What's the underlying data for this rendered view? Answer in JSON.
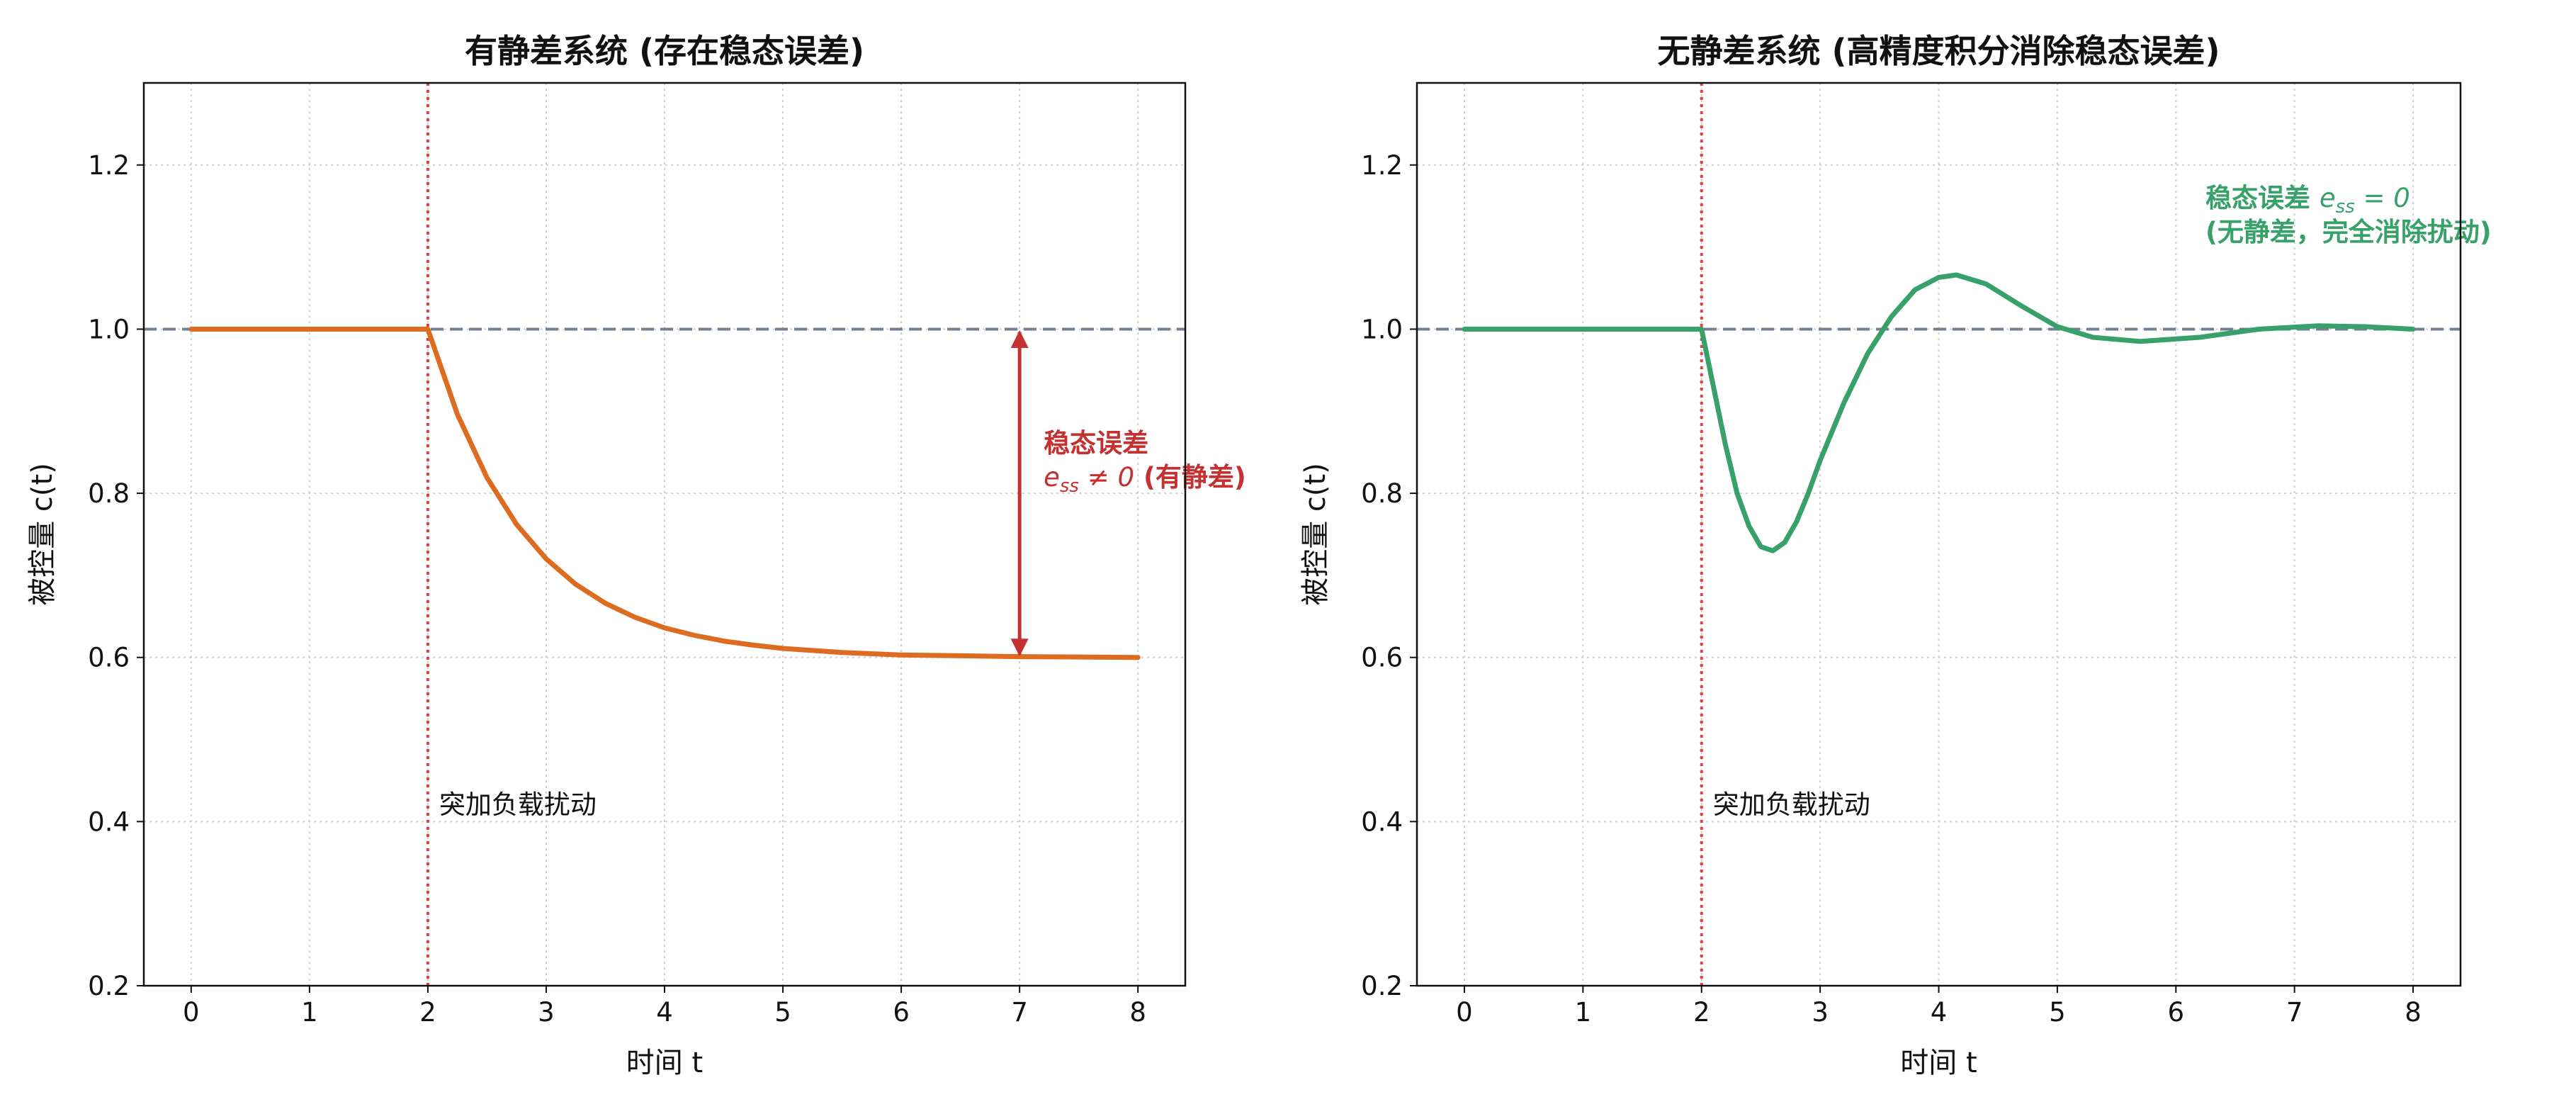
{
  "chart_data": [
    {
      "type": "line",
      "title": "有静差系统 (存在稳态误差)",
      "title_color": "#DD6B20",
      "xlabel": "时间 t",
      "ylabel": "被控量 c(t)",
      "x": [
        0,
        1,
        2,
        2.25,
        2.5,
        2.75,
        3,
        3.25,
        3.5,
        3.75,
        4,
        4.25,
        4.5,
        4.75,
        5,
        5.5,
        6,
        6.5,
        7,
        8
      ],
      "series": [
        {
          "name": "c(t)",
          "color": "#DD6B20",
          "values": [
            1,
            1,
            1,
            0.896,
            0.819,
            0.762,
            0.72,
            0.689,
            0.666,
            0.649,
            0.636,
            0.627,
            0.62,
            0.615,
            0.611,
            0.606,
            0.603,
            0.602,
            0.601,
            0.6
          ]
        }
      ],
      "xlim": [
        -0.4,
        8.4
      ],
      "ylim": [
        0.2,
        1.3
      ],
      "xticks": [
        0,
        1,
        2,
        3,
        4,
        5,
        6,
        7,
        8
      ],
      "yticks": [
        0.2,
        0.4,
        0.6,
        0.8,
        {
          "value": 1,
          "label": "1.0"
        },
        1.2
      ],
      "grid": true,
      "reference": 1,
      "reference_color": "#718096",
      "disturbance": {
        "x": 2,
        "label": "突加负载扰动",
        "color": "#E53E3E"
      },
      "error_arrow": {
        "x": 7,
        "from": 1,
        "to": 0.6,
        "color": "#C53030"
      },
      "annotation": {
        "color": "#C53030",
        "lines": [
          [
            {
              "text": "稳态误差",
              "style": "bold"
            }
          ],
          [
            {
              "text": "e",
              "style": "math"
            },
            {
              "text": "ss",
              "style": "sub"
            },
            {
              "text": " ≠ 0",
              "style": "math"
            },
            {
              "text": " (有静差)",
              "style": "bold"
            }
          ]
        ]
      }
    },
    {
      "type": "line",
      "title": "无静差系统 (高精度积分消除稳态误差)",
      "title_color": "#38A169",
      "xlabel": "时间 t",
      "ylabel": "被控量 c(t)",
      "x": [
        0,
        1,
        2,
        2.1,
        2.2,
        2.3,
        2.4,
        2.5,
        2.6,
        2.7,
        2.8,
        2.9,
        3,
        3.2,
        3.4,
        3.6,
        3.8,
        4,
        4.15,
        4.4,
        4.7,
        5,
        5.3,
        5.7,
        6.2,
        6.7,
        7.2,
        7.6,
        8
      ],
      "series": [
        {
          "name": "c(t)",
          "color": "#38A169",
          "values": [
            1,
            1,
            1,
            0.93,
            0.86,
            0.8,
            0.76,
            0.735,
            0.73,
            0.74,
            0.765,
            0.8,
            0.84,
            0.91,
            0.97,
            1.015,
            1.048,
            1.063,
            1.066,
            1.055,
            1.028,
            1.003,
            0.99,
            0.985,
            0.99,
            1,
            1.004,
            1.003,
            1
          ]
        }
      ],
      "xlim": [
        -0.4,
        8.4
      ],
      "ylim": [
        0.2,
        1.3
      ],
      "xticks": [
        0,
        1,
        2,
        3,
        4,
        5,
        6,
        7,
        8
      ],
      "yticks": [
        0.2,
        0.4,
        0.6,
        0.8,
        {
          "value": 1,
          "label": "1.0"
        },
        1.2
      ],
      "grid": true,
      "reference": 1,
      "reference_color": "#718096",
      "disturbance": {
        "x": 2,
        "label": "突加负载扰动",
        "color": "#E53E3E"
      },
      "annotation": {
        "color": "#38A169",
        "lines": [
          [
            {
              "text": "稳态误差 ",
              "style": "bold"
            },
            {
              "text": "e",
              "style": "math"
            },
            {
              "text": "ss",
              "style": "sub"
            },
            {
              "text": " = 0",
              "style": "math"
            }
          ],
          [
            {
              "text": "(无静差，完全消除扰动)",
              "style": "bold"
            }
          ]
        ]
      }
    }
  ]
}
